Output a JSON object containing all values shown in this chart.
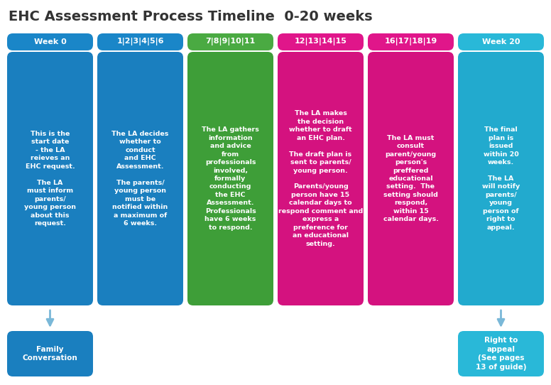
{
  "title": "EHC Assessment Process Timeline  0-20 weeks",
  "title_fontsize": 14,
  "title_color": "#333333",
  "background_color": "#ffffff",
  "columns": [
    {
      "header": "Week 0",
      "header_color": "#1a86c8",
      "body_color": "#1a7fbf",
      "text": "This is the\nstart date\n- the LA\nreieves an\nEHC request.\n\nThe LA\nmust inform\nparents/\nyoung person\nabout this\nrequest.",
      "footer_box": true,
      "footer_text": "Family\nConversation",
      "footer_color": "#1a7fbf"
    },
    {
      "header": "1|2|3|4|5|6",
      "header_color": "#1a86c8",
      "body_color": "#1a7fbf",
      "text": "The LA decides\nwhether to\nconduct\nand EHC\nAssessment.\n\nThe parents/\nyoung person\nmust be\nnotified within\na maximum of\n6 weeks.",
      "footer_box": false,
      "footer_text": "",
      "footer_color": ""
    },
    {
      "header": "7|8|9|10|11",
      "header_color": "#4aaa42",
      "body_color": "#3e9e38",
      "text": "The LA gathers\ninformation\nand advice\nfrom\nprofessionals\ninvolved,\nformally\nconducting\nthe EHC\nAssessment.\nProfessionals\nhave 6 weeks\nto respond.",
      "footer_box": false,
      "footer_text": "",
      "footer_color": ""
    },
    {
      "header": "12|13|14|15",
      "header_color": "#e0168a",
      "body_color": "#d4127f",
      "text": "The LA makes\nthe decision\nwhether to draft\nan EHC plan.\n\nThe draft plan is\nsent to parents/\nyoung person.\n\nParents/young\nperson have 15\ncalendar days to\nrespond comment and\nexpress a\npreference for\nan educational\nsetting.",
      "footer_box": false,
      "footer_text": "",
      "footer_color": ""
    },
    {
      "header": "16|17|18|19",
      "header_color": "#e0168a",
      "body_color": "#d4127f",
      "text": "The LA must\nconsult\nparent/young\nperson's\npreffered\neducational\nsetting.  The\nsetting should\nrespond,\nwithin 15\ncalendar days.",
      "footer_box": false,
      "footer_text": "",
      "footer_color": ""
    },
    {
      "header": "Week 20",
      "header_color": "#29b8d8",
      "body_color": "#22aace",
      "text": "The final\nplan is\nissued\nwithin 20\nweeks.\n\nThe LA\nwill notify\nparents/\nyoung\nperson of\nright to\nappeal.",
      "footer_box": true,
      "footer_text": "Right to\nappeal\n(See pages\n13 of guide)",
      "footer_color": "#29b8d8"
    }
  ],
  "arrow_color": "#7ab8d8",
  "header_text_color": "#ffffff",
  "body_text_color": "#ffffff",
  "footer_text_color": "#ffffff",
  "footer_subtext_color": "#cceeff"
}
